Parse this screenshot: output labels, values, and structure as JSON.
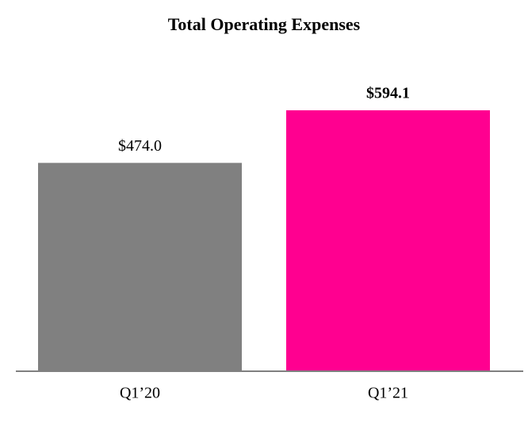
{
  "chart_data": {
    "type": "bar",
    "title": "Total Operating Expenses",
    "categories": [
      "Q1’20",
      "Q1’21"
    ],
    "values": [
      474.0,
      594.1
    ],
    "value_labels": [
      "$474.0",
      "$594.1"
    ],
    "colors": [
      "#808080",
      "#ff0090"
    ],
    "bold_value_labels": [
      false,
      true
    ],
    "grid": false
  }
}
